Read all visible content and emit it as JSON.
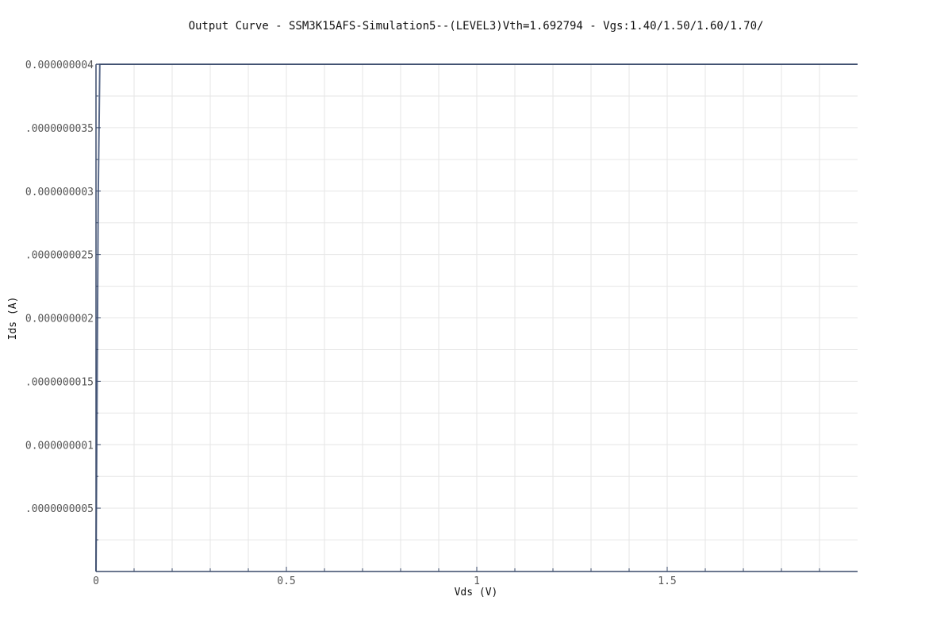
{
  "chart_data": {
    "type": "line",
    "title": "Output Curve - SSM3K15AFS-Simulation5--(LEVEL3)Vth=1.692794 - Vgs:1.40/1.50/1.60/1.70/",
    "xlabel": "Vds (V)",
    "ylabel": "Ids (A)",
    "xlim": [
      0,
      2
    ],
    "ylim": [
      0,
      4e-09
    ],
    "x_ticks": [
      0,
      0.5,
      1,
      1.5
    ],
    "x_tick_labels": [
      "0",
      "0.5",
      "1",
      "1.5"
    ],
    "y_ticks": [
      5e-10,
      1e-09,
      1.5e-09,
      2e-09,
      2.5e-09,
      3e-09,
      3.5e-09,
      4e-09
    ],
    "y_tick_labels": [
      ".0000000005",
      "0.000000001",
      ".0000000015",
      "0.000000002",
      ".0000000025",
      "0.000000003",
      ".0000000035",
      "0.000000004"
    ],
    "grid": true,
    "colors": {
      "series": "#5a6a8a",
      "axis": "#3a4a6a",
      "grid": "#e6e6e6"
    },
    "series": [
      {
        "x": [
          0,
          0.001,
          0.002,
          0.003,
          0.004,
          0.005,
          0.006,
          0.008,
          0.01,
          2.0
        ],
        "y": [
          0,
          5e-10,
          1e-09,
          1.5e-09,
          2e-09,
          2.5e-09,
          3e-09,
          3.5e-09,
          4e-09,
          4e-09
        ]
      }
    ]
  }
}
